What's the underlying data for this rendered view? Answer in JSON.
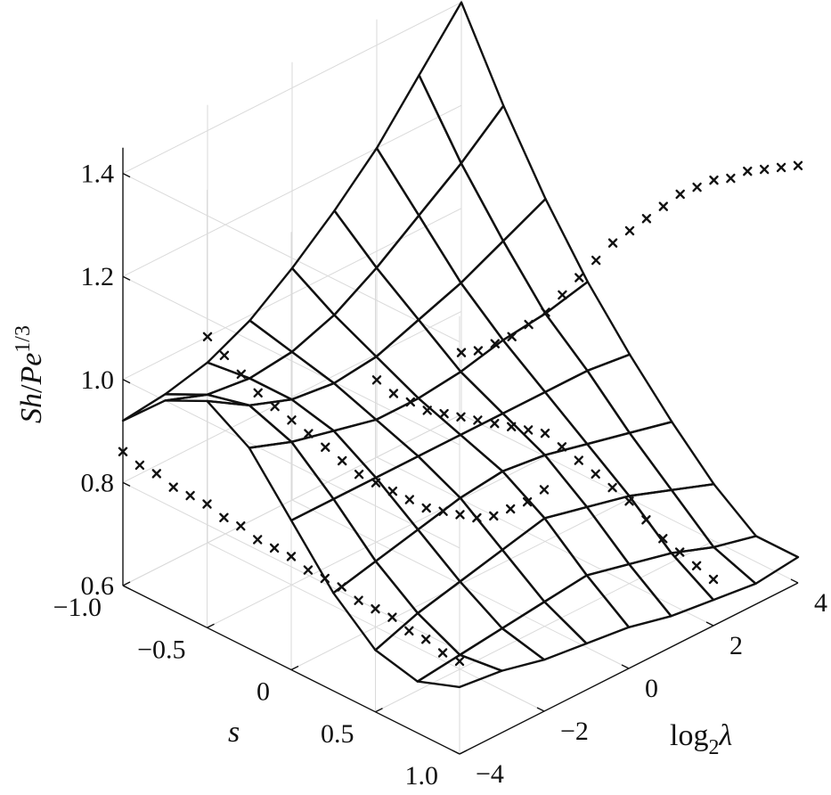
{
  "chart_data": {
    "type": "surface",
    "title": "",
    "xlabel": {
      "prefix": "log",
      "sub": "2",
      "symbol": "λ"
    },
    "ylabel": "s",
    "zlabel": {
      "base": "Sh",
      "slash": "/",
      "pe": "Pe",
      "sup": "1/3"
    },
    "xlim": [
      -4,
      4
    ],
    "ylim": [
      -1.0,
      1.0
    ],
    "zlim": [
      0.6,
      1.45
    ],
    "x_ticks": [
      "−4",
      "−2",
      "0",
      "2",
      "4"
    ],
    "y_ticks": [
      "−1.0",
      "−0.5",
      "0",
      "0.5",
      "1.0"
    ],
    "z_ticks": [
      "0.6",
      "0.8",
      "1.0",
      "1.2",
      "1.4"
    ],
    "grid": true,
    "x_values": [
      -4,
      -3,
      -2,
      -1,
      0,
      1,
      2,
      3,
      4
    ],
    "y_values": [
      -1.0,
      -0.75,
      -0.5,
      -0.25,
      0,
      0.25,
      0.5,
      0.75,
      1.0
    ],
    "series": [
      {
        "kind": "surface",
        "z_values": [
          [
            0.92,
            1.0,
            1.04,
            0.99,
            0.89,
            0.79,
            0.72,
            0.7,
            0.73
          ],
          [
            0.93,
            0.97,
            0.99,
            0.96,
            0.89,
            0.81,
            0.75,
            0.71,
            0.72
          ],
          [
            0.95,
            0.96,
            0.96,
            0.94,
            0.89,
            0.83,
            0.77,
            0.72,
            0.7
          ],
          [
            0.99,
            0.97,
            0.95,
            0.92,
            0.89,
            0.85,
            0.79,
            0.73,
            0.69
          ],
          [
            1.05,
            1.0,
            0.96,
            0.92,
            0.89,
            0.86,
            0.81,
            0.74,
            0.68
          ],
          [
            1.12,
            1.05,
            0.99,
            0.93,
            0.89,
            0.85,
            0.79,
            0.72,
            0.66
          ],
          [
            1.2,
            1.11,
            1.02,
            0.95,
            0.89,
            0.83,
            0.77,
            0.7,
            0.65
          ],
          [
            1.3,
            1.17,
            1.06,
            0.96,
            0.89,
            0.81,
            0.74,
            0.67,
            0.64
          ],
          [
            1.4,
            1.24,
            1.1,
            0.98,
            0.88,
            0.79,
            0.71,
            0.65,
            0.65
          ]
        ]
      },
      {
        "kind": "markers",
        "marker": "x",
        "points": [
          [
            -4,
            -1.0,
            0.86
          ],
          [
            -4,
            -0.9,
            0.85
          ],
          [
            -4,
            -0.8,
            0.85
          ],
          [
            -4,
            -0.7,
            0.84
          ],
          [
            -4,
            -0.6,
            0.84
          ],
          [
            -4,
            -0.5,
            0.84
          ],
          [
            -4,
            -0.4,
            0.83
          ],
          [
            -4,
            -0.3,
            0.83
          ],
          [
            -4,
            -0.2,
            0.82
          ],
          [
            -4,
            -0.1,
            0.82
          ],
          [
            -4,
            0.0,
            0.82
          ],
          [
            -4,
            0.1,
            0.81
          ],
          [
            -4,
            0.2,
            0.81
          ],
          [
            -4,
            0.3,
            0.81
          ],
          [
            -4,
            0.4,
            0.8
          ],
          [
            -4,
            0.5,
            0.8
          ],
          [
            -4,
            0.6,
            0.8
          ],
          [
            -4,
            0.7,
            0.79
          ],
          [
            -4,
            0.8,
            0.79
          ],
          [
            -4,
            0.9,
            0.78
          ],
          [
            -4,
            1.0,
            0.78
          ],
          [
            -2,
            -1.0,
            1.0
          ],
          [
            -2,
            -0.9,
            0.98
          ],
          [
            -2,
            -0.8,
            0.96
          ],
          [
            -2,
            -0.7,
            0.94
          ],
          [
            -2,
            -0.6,
            0.93
          ],
          [
            -2,
            -0.5,
            0.92
          ],
          [
            -2,
            -0.4,
            0.91
          ],
          [
            -2,
            -0.3,
            0.9
          ],
          [
            -2,
            -0.2,
            0.89
          ],
          [
            -2,
            -0.1,
            0.88
          ],
          [
            -2,
            0.0,
            0.88
          ],
          [
            -2,
            0.1,
            0.88
          ],
          [
            -2,
            0.2,
            0.88
          ],
          [
            -2,
            0.3,
            0.88
          ],
          [
            -2,
            0.4,
            0.89
          ],
          [
            -2,
            0.5,
            0.9
          ],
          [
            -2,
            0.6,
            0.91
          ],
          [
            -2,
            0.7,
            0.93
          ],
          [
            -2,
            0.8,
            0.96
          ],
          [
            -2,
            0.9,
            0.99
          ],
          [
            -2,
            1.0,
            1.03
          ],
          [
            2,
            -1.0,
            0.75
          ],
          [
            2,
            -0.9,
            0.74
          ],
          [
            2,
            -0.8,
            0.74
          ],
          [
            2,
            -0.7,
            0.74
          ],
          [
            2,
            -0.6,
            0.75
          ],
          [
            2,
            -0.5,
            0.76
          ],
          [
            2,
            -0.4,
            0.77
          ],
          [
            2,
            -0.3,
            0.78
          ],
          [
            2,
            -0.2,
            0.79
          ],
          [
            2,
            -0.1,
            0.8
          ],
          [
            2,
            0.0,
            0.81
          ],
          [
            2,
            0.1,
            0.8
          ],
          [
            2,
            0.2,
            0.79
          ],
          [
            2,
            0.3,
            0.78
          ],
          [
            2,
            0.4,
            0.77
          ],
          [
            2,
            0.5,
            0.76
          ],
          [
            2,
            0.6,
            0.74
          ],
          [
            2,
            0.7,
            0.72
          ],
          [
            2,
            0.8,
            0.71
          ],
          [
            2,
            0.9,
            0.7
          ],
          [
            2,
            1.0,
            0.69
          ],
          [
            4,
            -1.0,
            0.72
          ],
          [
            4,
            -0.9,
            0.74
          ],
          [
            4,
            -0.8,
            0.77
          ],
          [
            4,
            -0.7,
            0.8
          ],
          [
            4,
            -0.6,
            0.84
          ],
          [
            4,
            -0.5,
            0.88
          ],
          [
            4,
            -0.4,
            0.93
          ],
          [
            4,
            -0.3,
            0.98
          ],
          [
            4,
            -0.2,
            1.03
          ],
          [
            4,
            -0.1,
            1.08
          ],
          [
            4,
            0.0,
            1.12
          ],
          [
            4,
            0.1,
            1.16
          ],
          [
            4,
            0.2,
            1.2
          ],
          [
            4,
            0.3,
            1.24
          ],
          [
            4,
            0.4,
            1.27
          ],
          [
            4,
            0.5,
            1.3
          ],
          [
            4,
            0.6,
            1.32
          ],
          [
            4,
            0.7,
            1.35
          ],
          [
            4,
            0.8,
            1.37
          ],
          [
            4,
            0.9,
            1.39
          ],
          [
            4,
            1.0,
            1.41
          ]
        ]
      }
    ]
  }
}
